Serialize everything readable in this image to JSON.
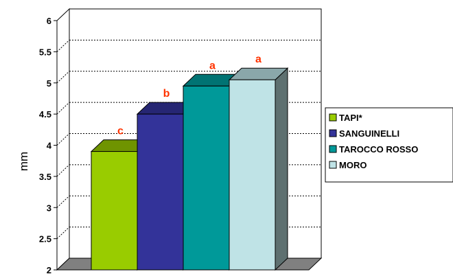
{
  "chart_data": {
    "type": "bar",
    "ylabel": "mm",
    "ylim": [
      2,
      6
    ],
    "yticks": [
      "2",
      "2.5",
      "3",
      "3.5",
      "4",
      "4.5",
      "5",
      "5.5",
      "6"
    ],
    "grid": true,
    "legend_position": "right",
    "series": [
      {
        "name": "TAPI*",
        "value": 3.9,
        "label": "c",
        "color": "#99cc00",
        "top_color": "#6f9400",
        "side_color": "#5d7d00"
      },
      {
        "name": "SANGUINELLI",
        "value": 4.5,
        "label": "b",
        "color": "#333399",
        "top_color": "#262673",
        "side_color": "#1f1f60"
      },
      {
        "name": "TAROCCO ROSSO",
        "value": 4.95,
        "label": "a",
        "color": "#009999",
        "top_color": "#007373",
        "side_color": "#006060"
      },
      {
        "name": "MORO",
        "value": 5.05,
        "label": "a",
        "color": "#bfe3e6",
        "top_color": "#8aa7aa",
        "side_color": "#5e7070"
      }
    ],
    "data_label_color": "#ff3300"
  }
}
